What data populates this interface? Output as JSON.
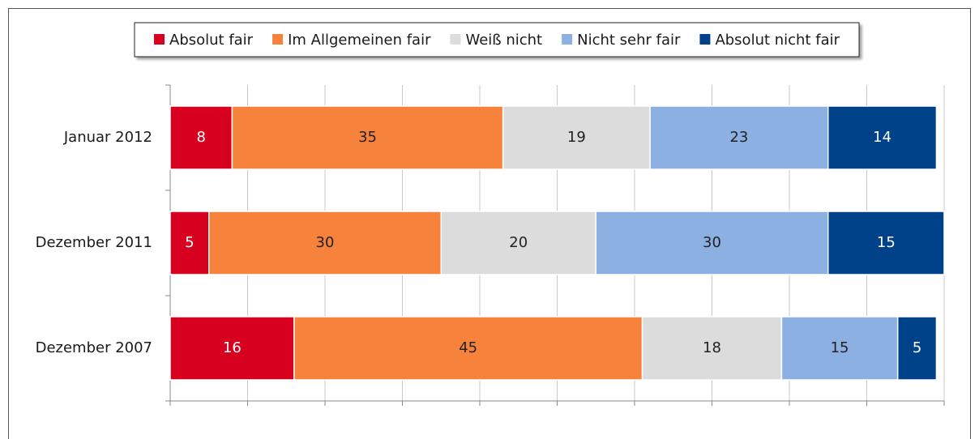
{
  "chart_data": {
    "type": "stacked-bar-horizontal",
    "categories": [
      "Januar 2012",
      "Dezember 2011",
      "Dezember 2007"
    ],
    "series": [
      {
        "name": "Absolut fair",
        "color": "#d7001e",
        "values": [
          8,
          5,
          16
        ]
      },
      {
        "name": "Im Allgemeinen fair",
        "color": "#f7823c",
        "values": [
          35,
          30,
          45
        ]
      },
      {
        "name": "Weiß nicht",
        "color": "#dcdcdc",
        "values": [
          19,
          20,
          18
        ]
      },
      {
        "name": "Nicht sehr fair",
        "color": "#8cb0e2",
        "values": [
          23,
          30,
          15
        ]
      },
      {
        "name": "Absolut nicht fair",
        "color": "#00428a",
        "values": [
          14,
          15,
          5
        ]
      }
    ],
    "xlim": [
      0,
      100
    ],
    "xticks": [
      0,
      10,
      20,
      30,
      40,
      50,
      60,
      70,
      80,
      90,
      100
    ],
    "grid": true,
    "legend": "top"
  }
}
